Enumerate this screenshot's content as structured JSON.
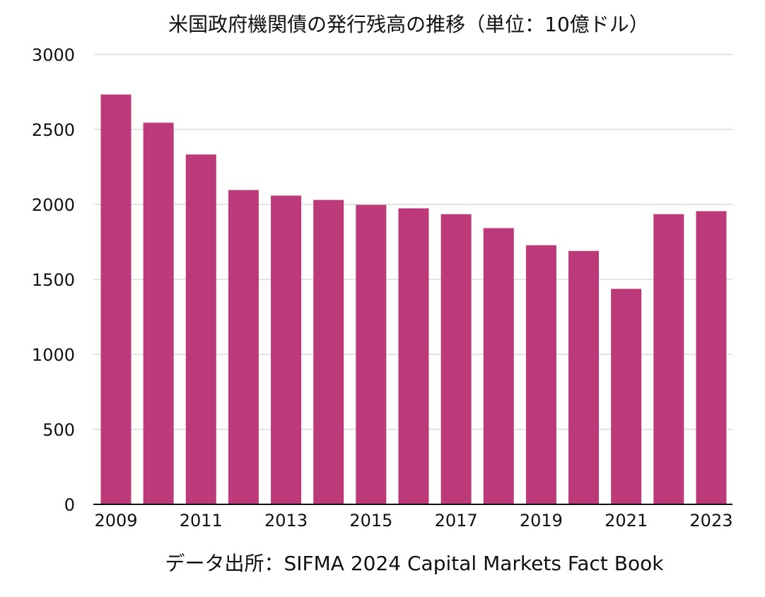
{
  "chart_data": {
    "type": "bar",
    "title": "米国政府機関債の発行残高の推移（単位：10億ドル）",
    "categories": [
      "2009",
      "2010",
      "2011",
      "2012",
      "2013",
      "2014",
      "2015",
      "2016",
      "2017",
      "2018",
      "2019",
      "2020",
      "2021",
      "2022",
      "2023"
    ],
    "x_tick_labels": [
      "2009",
      "2011",
      "2013",
      "2015",
      "2017",
      "2019",
      "2021",
      "2023"
    ],
    "values": [
      2733,
      2545,
      2333,
      2096,
      2059,
      2030,
      1997,
      1974,
      1935,
      1842,
      1728,
      1690,
      1437,
      1935,
      1955
    ],
    "ylim": [
      0,
      3000
    ],
    "y_ticks": [
      0,
      500,
      1000,
      1500,
      2000,
      2500,
      3000
    ],
    "grid": true,
    "bar_color": "#bd3a7a",
    "source": "データ出所：SIFMA 2024 Capital Markets Fact Book"
  }
}
